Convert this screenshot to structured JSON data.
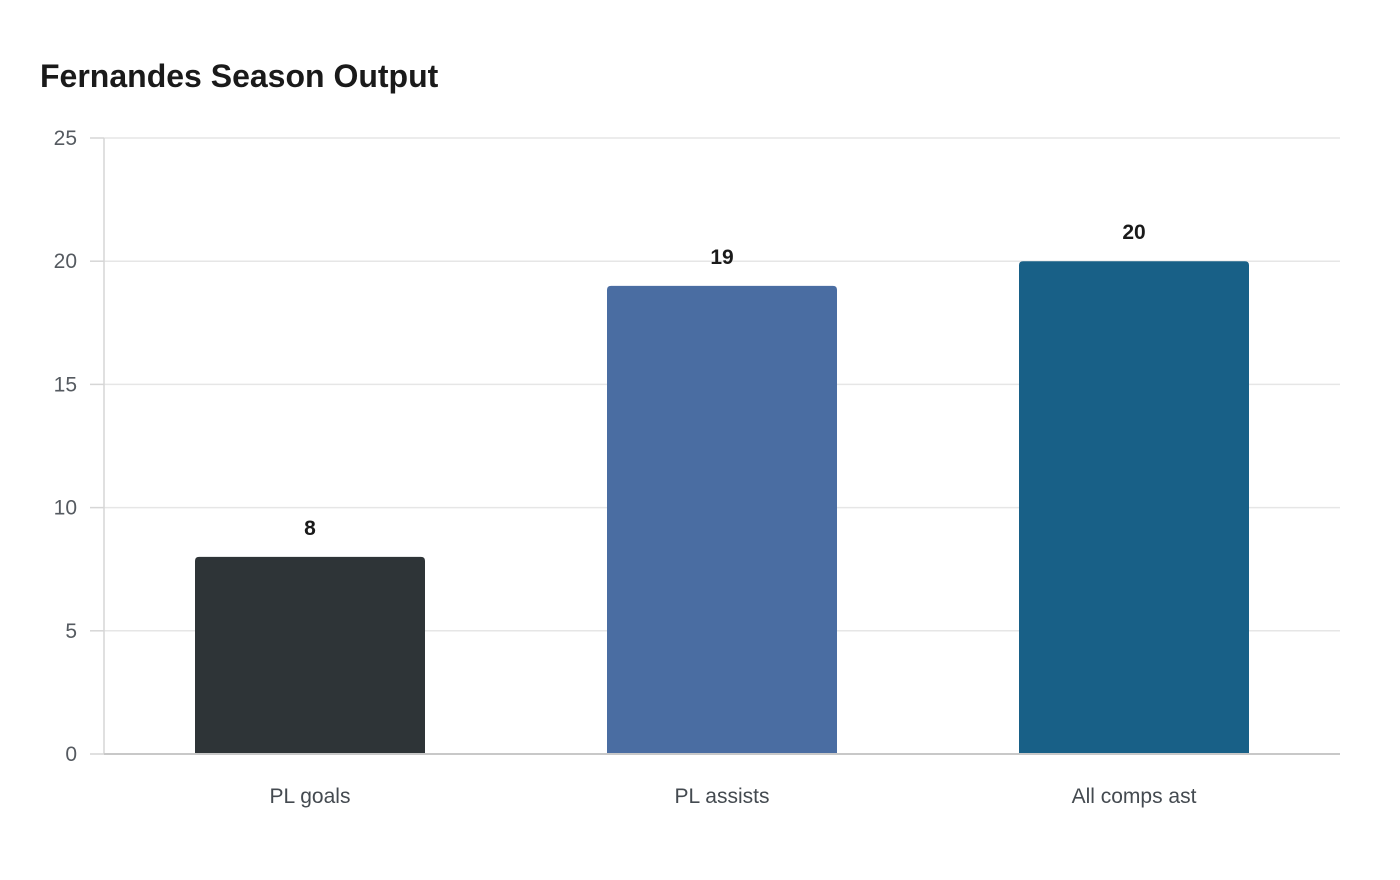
{
  "chart_data": {
    "type": "bar",
    "title": "Fernandes Season Output",
    "categories": [
      "PL goals",
      "PL assists",
      "All comps ast"
    ],
    "values": [
      8,
      19,
      20
    ],
    "colors": [
      "#2e3437",
      "#4a6da2",
      "#186087"
    ],
    "xlabel": "",
    "ylabel": "",
    "ylim": [
      0,
      25
    ],
    "yticks": [
      0,
      5,
      10,
      15,
      20,
      25
    ],
    "grid": true,
    "data_labels": true
  }
}
